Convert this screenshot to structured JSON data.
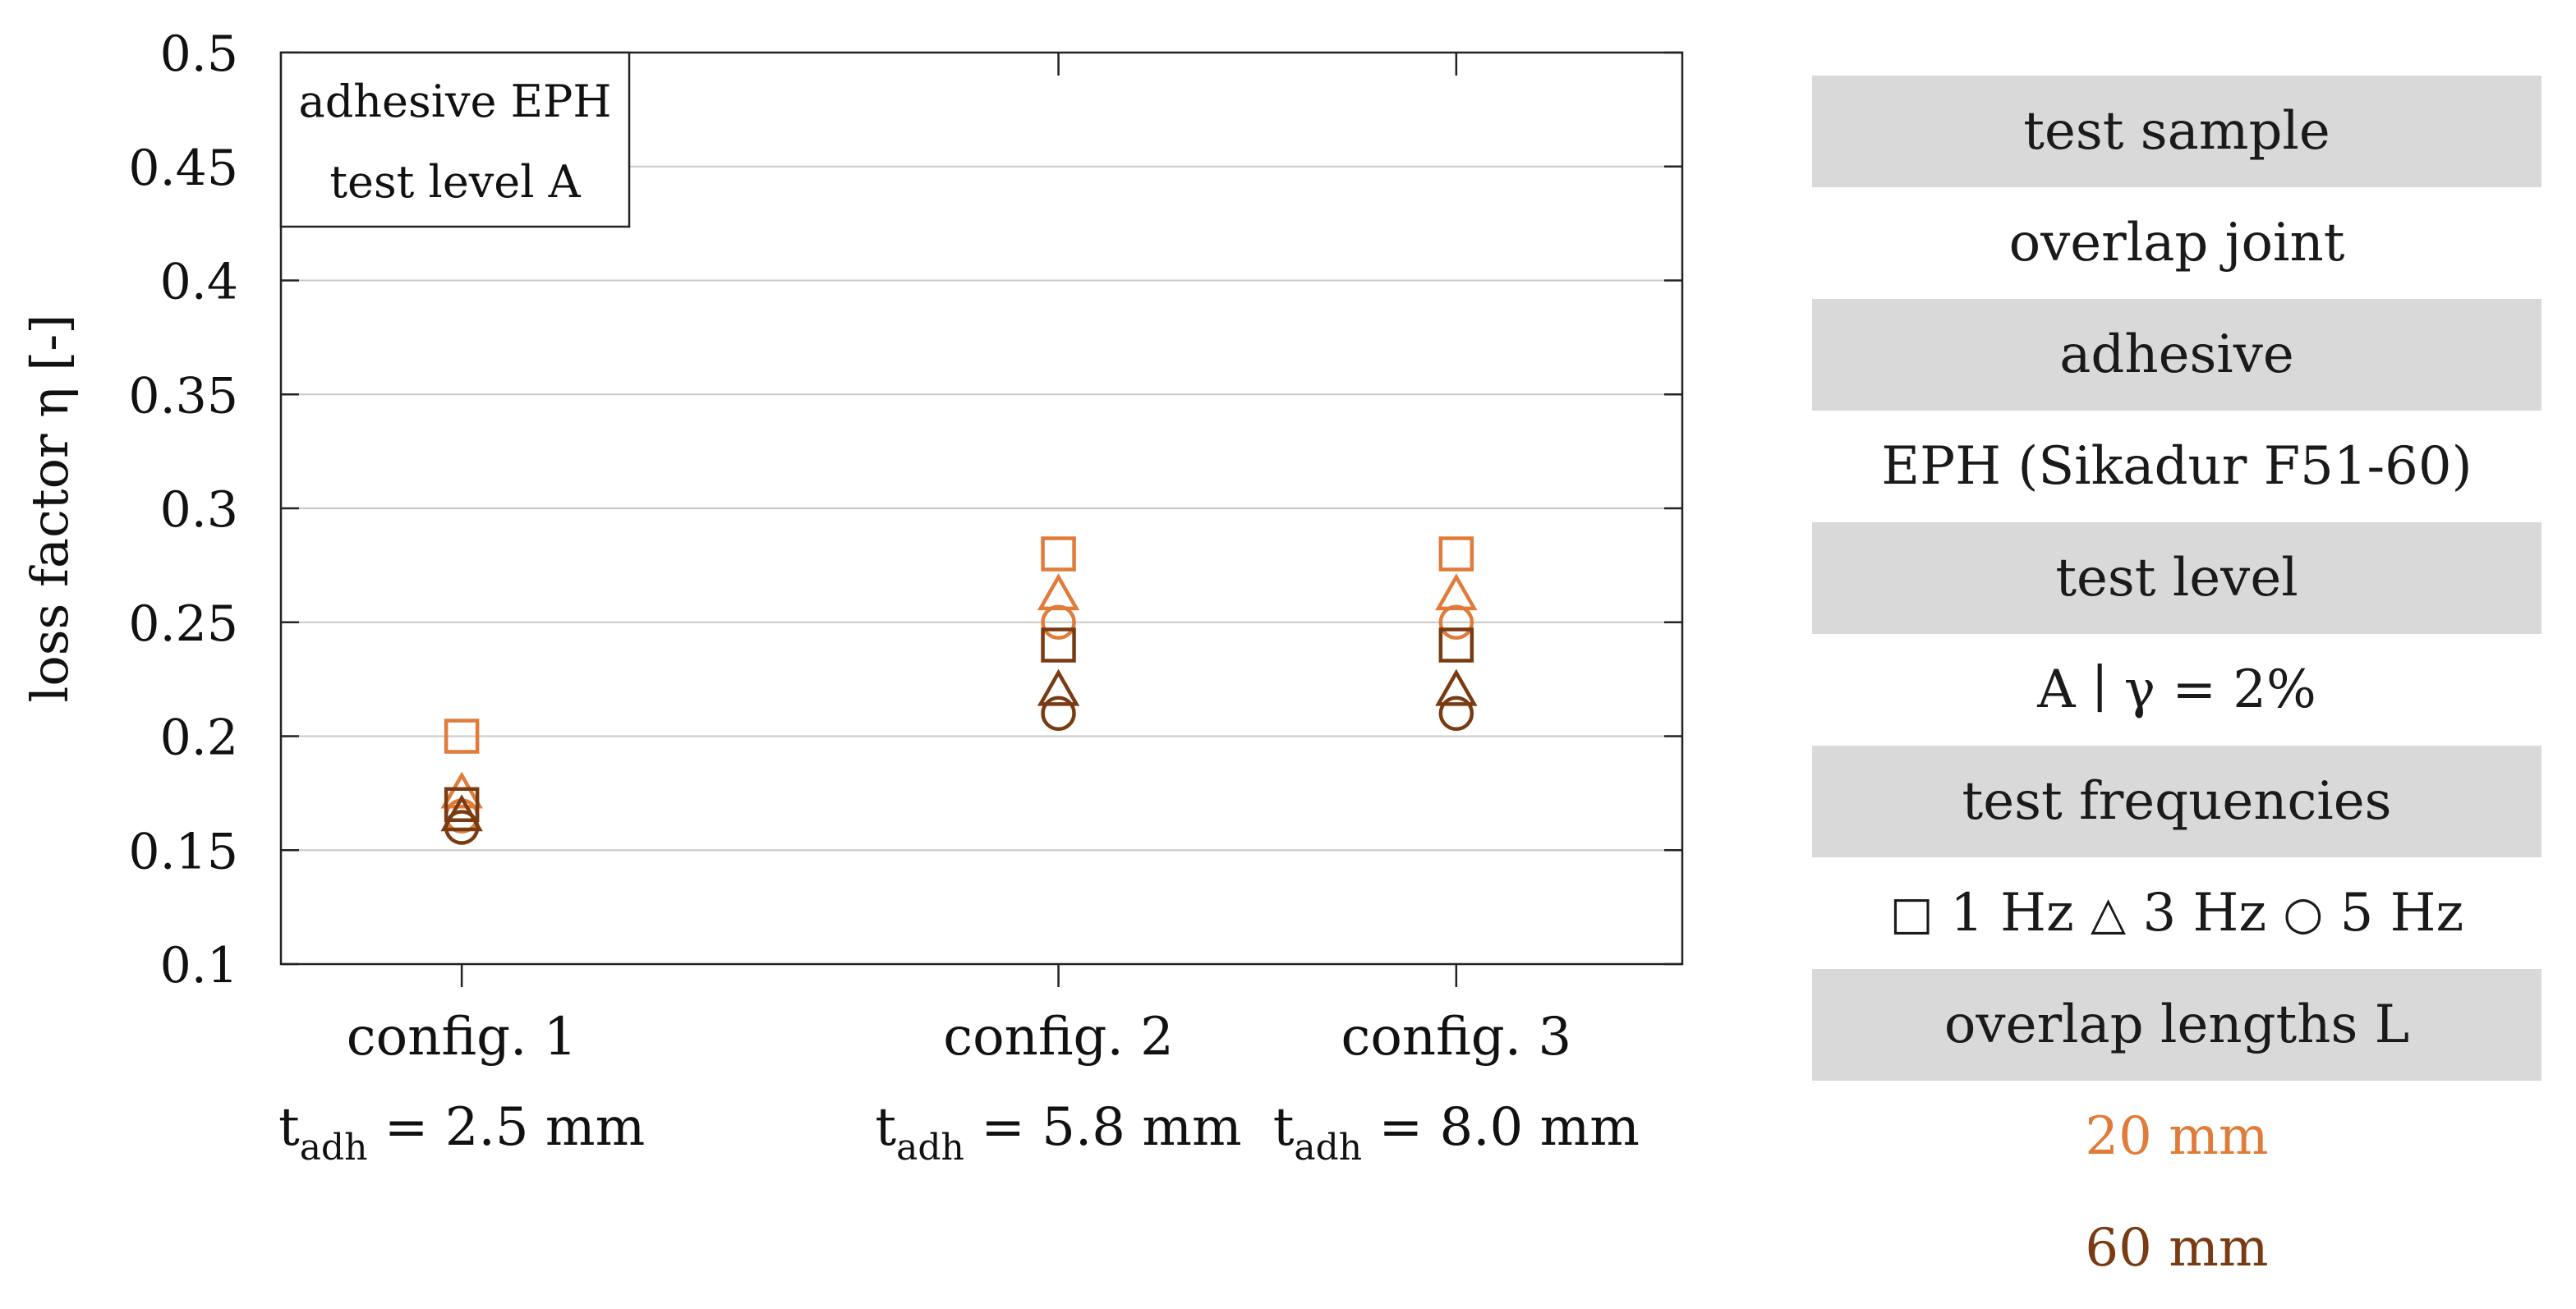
{
  "chart_data": {
    "type": "scatter",
    "ylabel": "loss factor η [-]",
    "ylim": [
      0.1,
      0.5
    ],
    "yticks": [
      "0.1",
      "0.15",
      "0.2",
      "0.25",
      "0.3",
      "0.35",
      "0.4",
      "0.45",
      "0.5"
    ],
    "grid": true,
    "categories": [
      {
        "label": "config. 1",
        "sub_t": "t",
        "sub_sub": "adh",
        "sub_val": " = 2.5 mm",
        "x": 2.5
      },
      {
        "label": "config. 2",
        "sub_t": "t",
        "sub_sub": "adh",
        "sub_val": " = 5.8 mm",
        "x": 5.8
      },
      {
        "label": "config. 3",
        "sub_t": "t",
        "sub_sub": "adh",
        "sub_val": " = 8.0 mm",
        "x": 8.0
      }
    ],
    "annotation": [
      "adhesive EPH",
      "test level A"
    ],
    "series": [
      {
        "overlap": "20 mm",
        "frequency": "1 Hz",
        "marker": "square",
        "color": "#e07b39",
        "values": [
          0.2,
          0.28,
          0.28
        ]
      },
      {
        "overlap": "20 mm",
        "frequency": "3 Hz",
        "marker": "triangle",
        "color": "#e07b39",
        "values": [
          0.175,
          0.262,
          0.262
        ]
      },
      {
        "overlap": "20 mm",
        "frequency": "5 Hz",
        "marker": "circle",
        "color": "#e07b39",
        "values": [
          0.165,
          0.25,
          0.25
        ]
      },
      {
        "overlap": "60 mm",
        "frequency": "1 Hz",
        "marker": "square",
        "color": "#7a3b12",
        "values": [
          0.17,
          0.24,
          0.24
        ]
      },
      {
        "overlap": "60 mm",
        "frequency": "3 Hz",
        "marker": "triangle",
        "color": "#7a3b12",
        "values": [
          0.165,
          0.22,
          0.22
        ]
      },
      {
        "overlap": "60 mm",
        "frequency": "5 Hz",
        "marker": "circle",
        "color": "#7a3b12",
        "values": [
          0.16,
          0.21,
          0.21
        ]
      }
    ]
  },
  "legend_table": {
    "h_sample": "test sample",
    "v_sample": "overlap joint",
    "h_adhesive": "adhesive",
    "v_adhesive": "EPH (Sikadur F51-60)",
    "h_level": "test level",
    "v_level": "A ∣ γ = 2%",
    "h_freq": "test frequencies",
    "freq_sq": "□",
    "freq_sq_label": " 1 Hz ",
    "freq_tri": "△",
    "freq_tri_label": " 3 Hz ",
    "freq_circ": "○",
    "freq_circ_label": " 5 Hz",
    "h_overlap": "overlap lengths L",
    "overlap_20": "20 mm",
    "overlap_60": "60 mm"
  },
  "colors": {
    "overlap_20": "#e07b39",
    "overlap_60": "#7a3b12",
    "grid": "#c8c8c8",
    "table_shade": "#d9d9d9"
  }
}
